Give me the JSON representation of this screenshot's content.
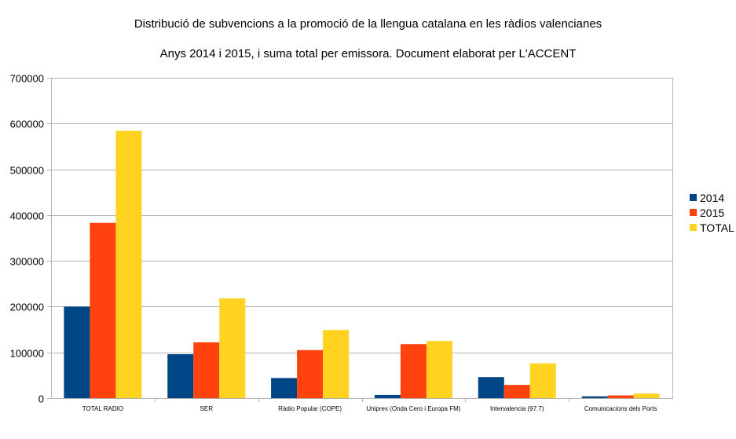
{
  "chart_data": {
    "type": "bar",
    "title": "Distribució de subvencions a la promoció de la llengua catalana en les ràdios valencianes",
    "subtitle": "Anys 2014 i 2015, i suma total per emissora. Document elaborat per L'ACCENT",
    "categories": [
      "TOTAL RADIO",
      "SER",
      "Ràdio Popular (COPE)",
      "Uniprex (Onda Cero i Europa FM)",
      "Intervalencia (97.7)",
      "Comunicacions dels Ports"
    ],
    "series": [
      {
        "name": "2014",
        "color": "#004586",
        "values": [
          200000,
          96000,
          44000,
          7000,
          46000,
          4000
        ]
      },
      {
        "name": "2015",
        "color": "#ff420e",
        "values": [
          383000,
          122000,
          105000,
          118000,
          29000,
          6000
        ]
      },
      {
        "name": "TOTAL",
        "color": "#ffd320",
        "values": [
          584000,
          218000,
          149000,
          125000,
          76000,
          10000
        ]
      }
    ],
    "ylim": [
      0,
      700000
    ],
    "yticks": [
      "0",
      "100000",
      "200000",
      "300000",
      "400000",
      "500000",
      "600000",
      "700000"
    ],
    "grid": true,
    "legend_position": "right"
  }
}
